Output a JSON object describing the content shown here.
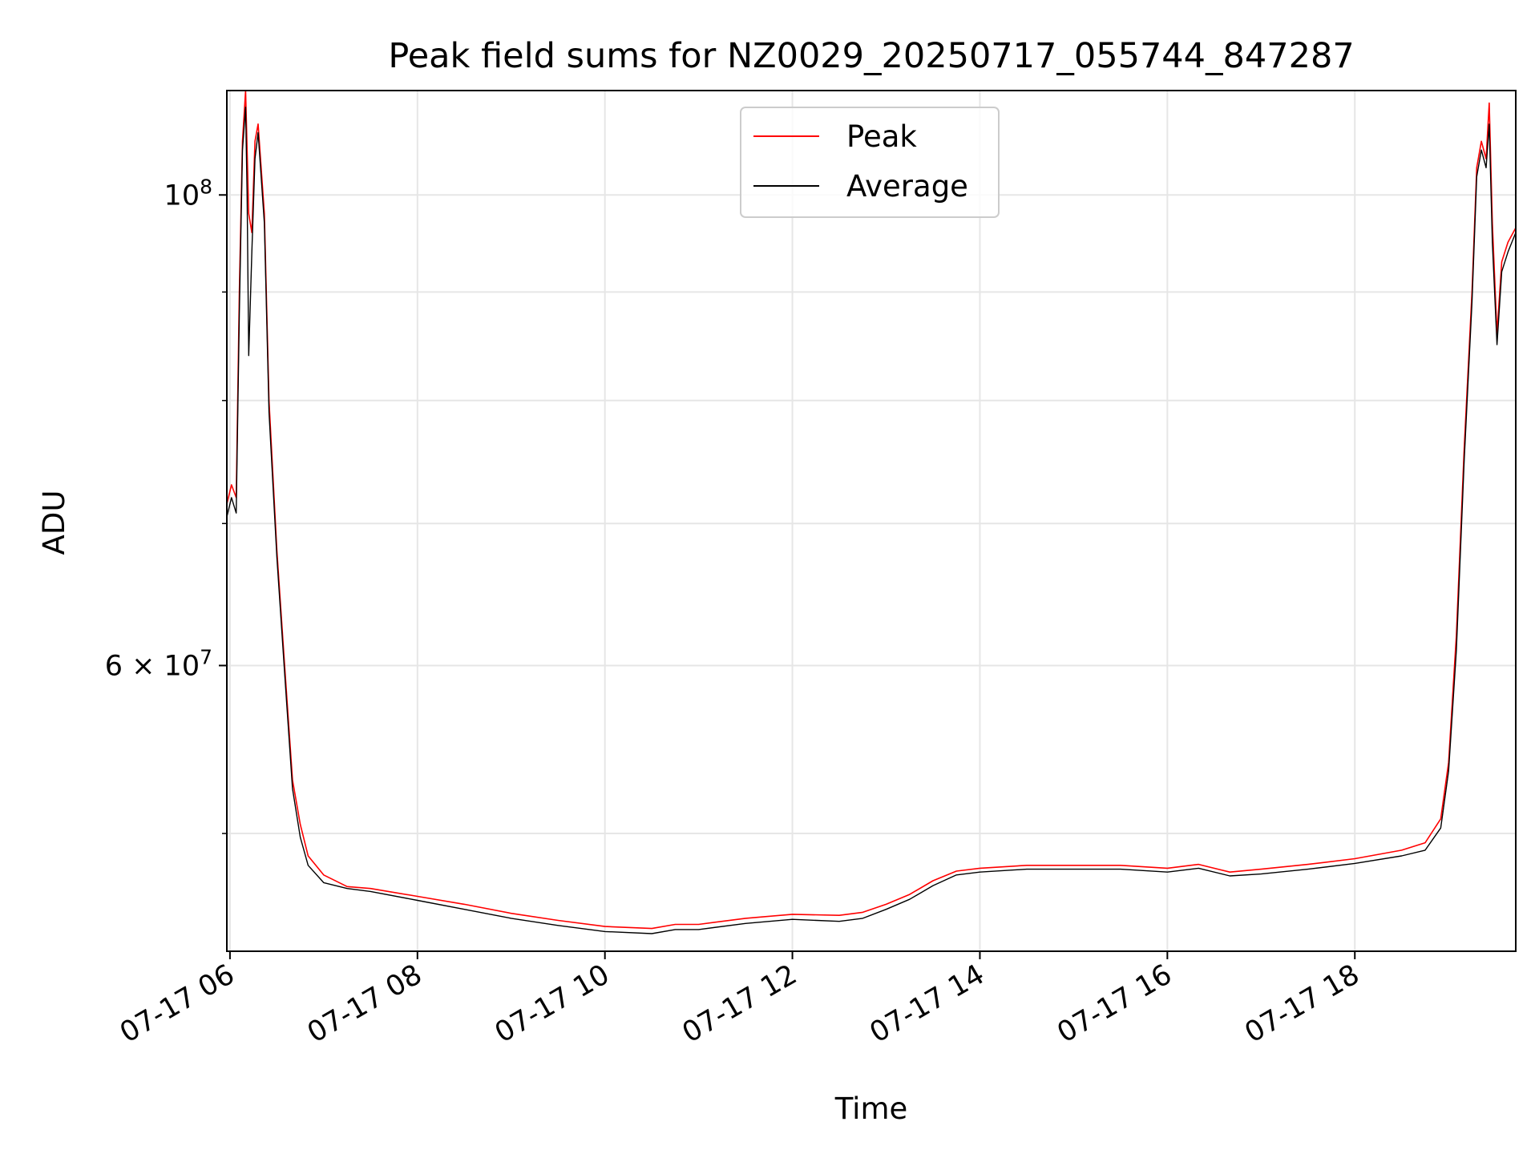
{
  "chart_data": {
    "type": "line",
    "title": "Peak field sums for NZ0029_20250717_055744_847287",
    "xlabel": "Time",
    "ylabel": "ADU",
    "y_scale": "log",
    "ylim": [
      44000000,
      112000000
    ],
    "xlim": [
      "2025-07-17 05:58",
      "2025-07-17 19:43"
    ],
    "x_ticks": [
      {
        "t": "2025-07-17 06:00",
        "label": "07-17 06"
      },
      {
        "t": "2025-07-17 08:00",
        "label": "07-17 08"
      },
      {
        "t": "2025-07-17 10:00",
        "label": "07-17 10"
      },
      {
        "t": "2025-07-17 12:00",
        "label": "07-17 12"
      },
      {
        "t": "2025-07-17 14:00",
        "label": "07-17 14"
      },
      {
        "t": "2025-07-17 16:00",
        "label": "07-17 16"
      },
      {
        "t": "2025-07-17 18:00",
        "label": "07-17 18"
      }
    ],
    "y_ticks_major": [
      {
        "value": 60000000,
        "mantissa": "6",
        "base": "10",
        "exp": "7",
        "times": "×"
      },
      {
        "value": 100000000,
        "mantissa": "",
        "base": "10",
        "exp": "8",
        "times": ""
      }
    ],
    "y_ticks_minor": [
      50000000,
      70000000,
      80000000,
      90000000
    ],
    "grid": true,
    "legend": {
      "position": "top-center"
    },
    "series": [
      {
        "name": "Peak",
        "color": "#ff0000",
        "points": [
          [
            "2025-07-17 05:58",
            71500000
          ],
          [
            "2025-07-17 06:01",
            73000000
          ],
          [
            "2025-07-17 06:04",
            72000000
          ],
          [
            "2025-07-17 06:06",
            90000000
          ],
          [
            "2025-07-17 06:08",
            106000000
          ],
          [
            "2025-07-17 06:10",
            112000000
          ],
          [
            "2025-07-17 06:12",
            98000000
          ],
          [
            "2025-07-17 06:14",
            96000000
          ],
          [
            "2025-07-17 06:16",
            106000000
          ],
          [
            "2025-07-17 06:18",
            108000000
          ],
          [
            "2025-07-17 06:22",
            98000000
          ],
          [
            "2025-07-17 06:25",
            80000000
          ],
          [
            "2025-07-17 06:30",
            68000000
          ],
          [
            "2025-07-17 06:35",
            60000000
          ],
          [
            "2025-07-17 06:40",
            53000000
          ],
          [
            "2025-07-17 06:45",
            50500000
          ],
          [
            "2025-07-17 06:50",
            48800000
          ],
          [
            "2025-07-17 07:00",
            47800000
          ],
          [
            "2025-07-17 07:15",
            47200000
          ],
          [
            "2025-07-17 07:30",
            47100000
          ],
          [
            "2025-07-17 08:00",
            46700000
          ],
          [
            "2025-07-17 08:30",
            46300000
          ],
          [
            "2025-07-17 09:00",
            45850000
          ],
          [
            "2025-07-17 09:30",
            45500000
          ],
          [
            "2025-07-17 10:00",
            45200000
          ],
          [
            "2025-07-17 10:30",
            45100000
          ],
          [
            "2025-07-17 10:45",
            45300000
          ],
          [
            "2025-07-17 11:00",
            45300000
          ],
          [
            "2025-07-17 11:30",
            45600000
          ],
          [
            "2025-07-17 12:00",
            45800000
          ],
          [
            "2025-07-17 12:30",
            45750000
          ],
          [
            "2025-07-17 12:45",
            45900000
          ],
          [
            "2025-07-17 13:00",
            46300000
          ],
          [
            "2025-07-17 13:15",
            46800000
          ],
          [
            "2025-07-17 13:30",
            47500000
          ],
          [
            "2025-07-17 13:45",
            48000000
          ],
          [
            "2025-07-17 14:00",
            48150000
          ],
          [
            "2025-07-17 14:30",
            48300000
          ],
          [
            "2025-07-17 15:00",
            48300000
          ],
          [
            "2025-07-17 15:30",
            48300000
          ],
          [
            "2025-07-17 16:00",
            48150000
          ],
          [
            "2025-07-17 16:20",
            48350000
          ],
          [
            "2025-07-17 16:40",
            47950000
          ],
          [
            "2025-07-17 17:00",
            48100000
          ],
          [
            "2025-07-17 17:30",
            48350000
          ],
          [
            "2025-07-17 18:00",
            48650000
          ],
          [
            "2025-07-17 18:30",
            49100000
          ],
          [
            "2025-07-17 18:45",
            49500000
          ],
          [
            "2025-07-17 18:55",
            50800000
          ],
          [
            "2025-07-17 19:00",
            54000000
          ],
          [
            "2025-07-17 19:05",
            62000000
          ],
          [
            "2025-07-17 19:10",
            76000000
          ],
          [
            "2025-07-17 19:15",
            90000000
          ],
          [
            "2025-07-17 19:18",
            103000000
          ],
          [
            "2025-07-17 19:21",
            106000000
          ],
          [
            "2025-07-17 19:24",
            104000000
          ],
          [
            "2025-07-17 19:26",
            110500000
          ],
          [
            "2025-07-17 19:28",
            97000000
          ],
          [
            "2025-07-17 19:31",
            86000000
          ],
          [
            "2025-07-17 19:34",
            93000000
          ],
          [
            "2025-07-17 19:38",
            95000000
          ],
          [
            "2025-07-17 19:43",
            96500000
          ]
        ]
      },
      {
        "name": "Average",
        "color": "#000000",
        "points": [
          [
            "2025-07-17 05:58",
            70500000
          ],
          [
            "2025-07-17 06:01",
            72000000
          ],
          [
            "2025-07-17 06:04",
            70800000
          ],
          [
            "2025-07-17 06:06",
            88000000
          ],
          [
            "2025-07-17 06:08",
            105000000
          ],
          [
            "2025-07-17 06:10",
            110000000
          ],
          [
            "2025-07-17 06:11",
            100000000
          ],
          [
            "2025-07-17 06:12",
            84000000
          ],
          [
            "2025-07-17 06:14",
            94000000
          ],
          [
            "2025-07-17 06:16",
            104000000
          ],
          [
            "2025-07-17 06:18",
            107000000
          ],
          [
            "2025-07-17 06:22",
            97000000
          ],
          [
            "2025-07-17 06:25",
            79000000
          ],
          [
            "2025-07-17 06:30",
            67500000
          ],
          [
            "2025-07-17 06:35",
            59500000
          ],
          [
            "2025-07-17 06:40",
            52500000
          ],
          [
            "2025-07-17 06:45",
            49800000
          ],
          [
            "2025-07-17 06:50",
            48300000
          ],
          [
            "2025-07-17 07:00",
            47400000
          ],
          [
            "2025-07-17 07:15",
            47100000
          ],
          [
            "2025-07-17 07:30",
            46950000
          ],
          [
            "2025-07-17 08:00",
            46500000
          ],
          [
            "2025-07-17 08:30",
            46050000
          ],
          [
            "2025-07-17 09:00",
            45600000
          ],
          [
            "2025-07-17 09:30",
            45250000
          ],
          [
            "2025-07-17 10:00",
            44950000
          ],
          [
            "2025-07-17 10:30",
            44850000
          ],
          [
            "2025-07-17 10:45",
            45050000
          ],
          [
            "2025-07-17 11:00",
            45050000
          ],
          [
            "2025-07-17 11:30",
            45350000
          ],
          [
            "2025-07-17 12:00",
            45550000
          ],
          [
            "2025-07-17 12:30",
            45450000
          ],
          [
            "2025-07-17 12:45",
            45600000
          ],
          [
            "2025-07-17 13:00",
            46050000
          ],
          [
            "2025-07-17 13:15",
            46550000
          ],
          [
            "2025-07-17 13:30",
            47250000
          ],
          [
            "2025-07-17 13:45",
            47800000
          ],
          [
            "2025-07-17 14:00",
            47950000
          ],
          [
            "2025-07-17 14:30",
            48100000
          ],
          [
            "2025-07-17 15:00",
            48100000
          ],
          [
            "2025-07-17 15:30",
            48100000
          ],
          [
            "2025-07-17 16:00",
            47950000
          ],
          [
            "2025-07-17 16:20",
            48150000
          ],
          [
            "2025-07-17 16:40",
            47750000
          ],
          [
            "2025-07-17 17:00",
            47850000
          ],
          [
            "2025-07-17 17:30",
            48100000
          ],
          [
            "2025-07-17 18:00",
            48400000
          ],
          [
            "2025-07-17 18:30",
            48800000
          ],
          [
            "2025-07-17 18:45",
            49100000
          ],
          [
            "2025-07-17 18:55",
            50300000
          ],
          [
            "2025-07-17 19:00",
            53500000
          ],
          [
            "2025-07-17 19:05",
            61000000
          ],
          [
            "2025-07-17 19:10",
            75000000
          ],
          [
            "2025-07-17 19:15",
            89000000
          ],
          [
            "2025-07-17 19:18",
            102000000
          ],
          [
            "2025-07-17 19:21",
            105000000
          ],
          [
            "2025-07-17 19:24",
            103000000
          ],
          [
            "2025-07-17 19:26",
            108000000
          ],
          [
            "2025-07-17 19:28",
            95000000
          ],
          [
            "2025-07-17 19:31",
            85000000
          ],
          [
            "2025-07-17 19:34",
            92000000
          ],
          [
            "2025-07-17 19:38",
            94000000
          ],
          [
            "2025-07-17 19:43",
            96000000
          ]
        ]
      }
    ]
  }
}
